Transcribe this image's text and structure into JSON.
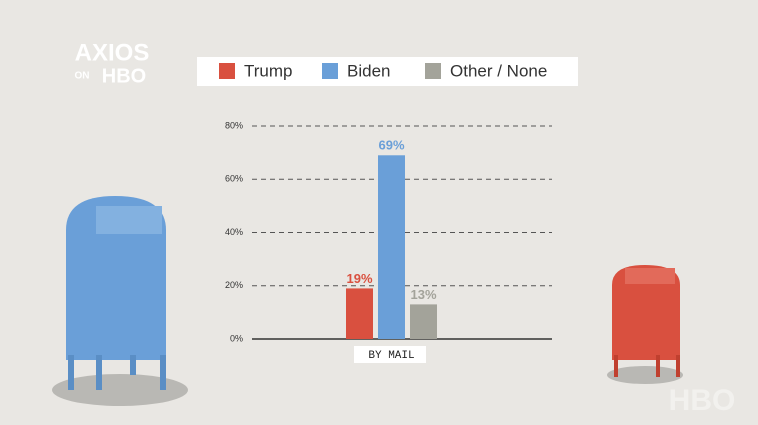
{
  "branding": {
    "logo": "AXIOS",
    "on": "ON",
    "network": "HBO",
    "watermark": "HBO"
  },
  "chart_data": {
    "type": "bar",
    "categories": [
      "BY MAIL"
    ],
    "series": [
      {
        "name": "Trump",
        "color": "#d9503f",
        "values": [
          19
        ],
        "value_labels": [
          "19%"
        ]
      },
      {
        "name": "Biden",
        "color": "#6a9fd8",
        "values": [
          69
        ],
        "value_labels": [
          "69%"
        ]
      },
      {
        "name": "Other / None",
        "color": "#a3a39a",
        "values": [
          13
        ],
        "value_labels": [
          "13%"
        ]
      }
    ],
    "ylim": [
      0,
      80
    ],
    "yticks": [
      {
        "value": 0,
        "label": "0%"
      },
      {
        "value": 20,
        "label": "20%"
      },
      {
        "value": 40,
        "label": "40%"
      },
      {
        "value": 60,
        "label": "60%"
      },
      {
        "value": 80,
        "label": "80%"
      }
    ],
    "grid": true
  }
}
